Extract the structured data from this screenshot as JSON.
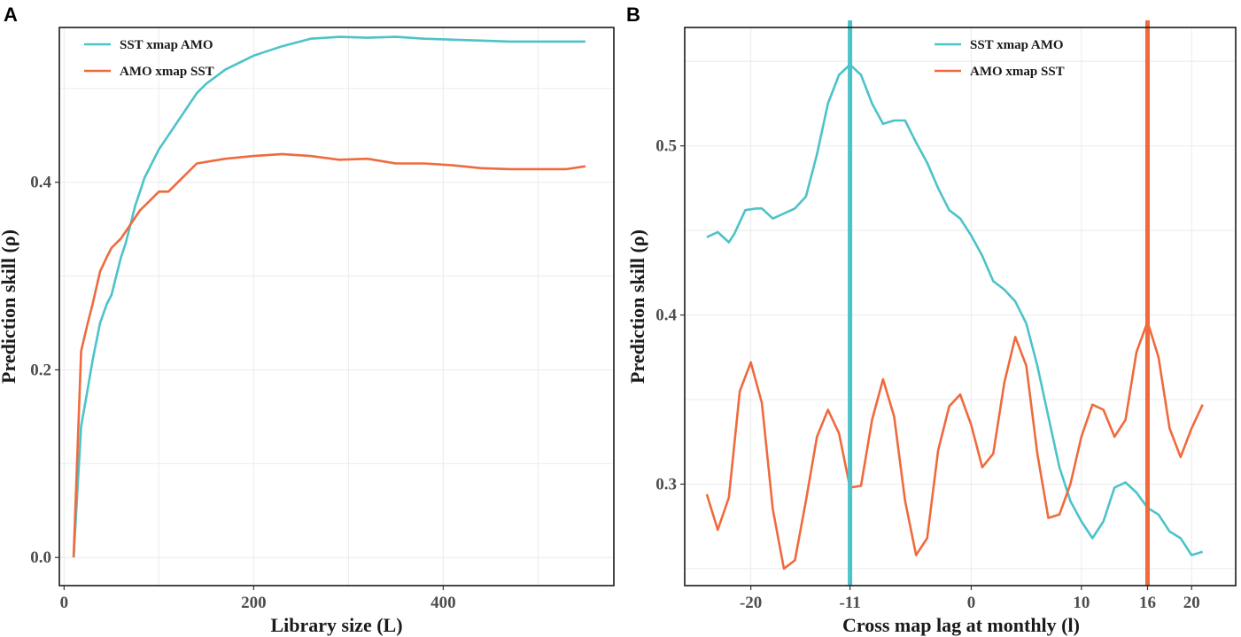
{
  "colors": {
    "teal": "#4cc3c9",
    "orange": "#ef6a3d"
  },
  "chart_data": [
    {
      "panel": "A",
      "type": "line",
      "xlabel": "Library size (L)",
      "ylabel": "Prediction skill (ρ)",
      "xlim": [
        -5,
        580
      ],
      "ylim": [
        -0.03,
        0.565
      ],
      "xticks": [
        0,
        200,
        400
      ],
      "xtick_labels": [
        "0",
        "200",
        "400"
      ],
      "yticks": [
        0.0,
        0.2,
        0.4
      ],
      "ytick_labels": [
        "0.0",
        "0.2",
        "0.4"
      ],
      "legend": "top-left",
      "series": [
        {
          "name": "SST xmap AMO",
          "color": "#4cc3c9",
          "x": [
            10,
            18,
            25,
            30,
            38,
            45,
            50,
            55,
            60,
            65,
            70,
            75,
            80,
            85,
            90,
            95,
            100,
            110,
            120,
            130,
            140,
            150,
            170,
            200,
            230,
            260,
            290,
            320,
            350,
            380,
            410,
            440,
            470,
            500,
            530,
            550
          ],
          "y": [
            0.0,
            0.14,
            0.18,
            0.21,
            0.25,
            0.27,
            0.28,
            0.3,
            0.32,
            0.335,
            0.355,
            0.375,
            0.39,
            0.405,
            0.415,
            0.425,
            0.435,
            0.45,
            0.465,
            0.48,
            0.495,
            0.505,
            0.52,
            0.535,
            0.545,
            0.553,
            0.555,
            0.554,
            0.555,
            0.553,
            0.552,
            0.551,
            0.55,
            0.55,
            0.55,
            0.55
          ]
        },
        {
          "name": "AMO xmap SST",
          "color": "#ef6a3d",
          "x": [
            10,
            18,
            25,
            30,
            38,
            45,
            50,
            55,
            60,
            70,
            80,
            90,
            100,
            110,
            120,
            140,
            170,
            200,
            230,
            260,
            290,
            320,
            350,
            380,
            410,
            440,
            470,
            500,
            530,
            550
          ],
          "y": [
            0.0,
            0.22,
            0.25,
            0.27,
            0.305,
            0.32,
            0.33,
            0.335,
            0.34,
            0.355,
            0.37,
            0.38,
            0.39,
            0.39,
            0.4,
            0.42,
            0.425,
            0.428,
            0.43,
            0.428,
            0.424,
            0.425,
            0.42,
            0.42,
            0.418,
            0.415,
            0.414,
            0.414,
            0.414,
            0.417
          ]
        }
      ]
    },
    {
      "panel": "B",
      "type": "line",
      "xlabel": "Cross map lag at monthly (l)",
      "ylabel": "Prediction skill (ρ)",
      "xlim": [
        -26,
        24
      ],
      "ylim": [
        0.24,
        0.57
      ],
      "xticks": [
        -20,
        -11,
        0,
        10,
        16,
        20
      ],
      "xtick_labels": [
        "-20",
        "-11",
        "0",
        "10",
        "16",
        "20"
      ],
      "yticks": [
        0.3,
        0.4,
        0.5
      ],
      "ytick_labels": [
        "0.3",
        "0.4",
        "0.5"
      ],
      "vlines": [
        {
          "x": -11,
          "color": "#4cc3c9"
        },
        {
          "x": 16,
          "color": "#ef6a3d"
        }
      ],
      "legend": "top-center",
      "series": [
        {
          "name": "SST xmap AMO",
          "color": "#4cc3c9",
          "x": [
            -24,
            -23,
            -22,
            -21.5,
            -20.5,
            -19.5,
            -19,
            -18,
            -17,
            -16,
            -15,
            -14,
            -13,
            -12,
            -11,
            -10,
            -9,
            -8,
            -7,
            -6,
            -5,
            -4,
            -3,
            -2,
            -1,
            0,
            1,
            2,
            3,
            4,
            5,
            6,
            7,
            8,
            9,
            10,
            11,
            12,
            13,
            14,
            15,
            16,
            17,
            18,
            19,
            20,
            21
          ],
          "y": [
            0.446,
            0.449,
            0.443,
            0.448,
            0.462,
            0.463,
            0.463,
            0.457,
            0.46,
            0.463,
            0.47,
            0.495,
            0.525,
            0.542,
            0.548,
            0.542,
            0.525,
            0.513,
            0.515,
            0.515,
            0.502,
            0.49,
            0.475,
            0.462,
            0.457,
            0.447,
            0.435,
            0.42,
            0.415,
            0.408,
            0.395,
            0.37,
            0.34,
            0.31,
            0.29,
            0.278,
            0.268,
            0.278,
            0.298,
            0.301,
            0.295,
            0.286,
            0.282,
            0.272,
            0.268,
            0.258,
            0.26
          ]
        },
        {
          "name": "AMO xmap SST",
          "color": "#ef6a3d",
          "x": [
            -24,
            -23,
            -22,
            -21,
            -20,
            -19,
            -18,
            -17,
            -16,
            -15,
            -14,
            -13,
            -12,
            -11,
            -10,
            -9,
            -8,
            -7,
            -6,
            -5,
            -4,
            -3,
            -2,
            -1,
            0,
            1,
            2,
            3,
            4,
            5,
            6,
            7,
            8,
            9,
            10,
            11,
            12,
            13,
            14,
            15,
            16,
            17,
            18,
            19,
            20,
            21
          ],
          "y": [
            0.294,
            0.273,
            0.292,
            0.355,
            0.372,
            0.348,
            0.285,
            0.25,
            0.255,
            0.29,
            0.328,
            0.344,
            0.33,
            0.298,
            0.299,
            0.338,
            0.362,
            0.34,
            0.29,
            0.258,
            0.268,
            0.32,
            0.346,
            0.353,
            0.335,
            0.31,
            0.318,
            0.36,
            0.387,
            0.37,
            0.318,
            0.28,
            0.282,
            0.3,
            0.328,
            0.347,
            0.344,
            0.328,
            0.338,
            0.378,
            0.396,
            0.375,
            0.333,
            0.316,
            0.333,
            0.347
          ]
        }
      ]
    }
  ]
}
